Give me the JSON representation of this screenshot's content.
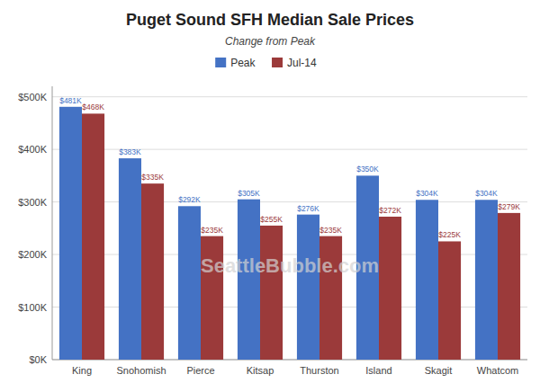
{
  "chart_data": {
    "type": "bar",
    "title": "Puget Sound SFH Median Sale Prices",
    "subtitle": "Change from Peak",
    "categories": [
      "King",
      "Snohomish",
      "Pierce",
      "Kitsap",
      "Thurston",
      "Island",
      "Skagit",
      "Whatcom"
    ],
    "series": [
      {
        "name": "Peak",
        "color": "#4472C4",
        "values": [
          481000,
          383000,
          292000,
          305000,
          276000,
          350000,
          304000,
          304000
        ],
        "value_labels": [
          "$481K",
          "$383K",
          "$292K",
          "$305K",
          "$276K",
          "$350K",
          "$304K",
          "$304K"
        ]
      },
      {
        "name": "Jul-14",
        "color": "#9B3A3A",
        "values": [
          468000,
          335000,
          235000,
          255000,
          235000,
          272000,
          225000,
          279000
        ],
        "value_labels": [
          "$468K",
          "$335K",
          "$235K",
          "$255K",
          "$235K",
          "$272K",
          "$225K",
          "$279K"
        ]
      }
    ],
    "ylim": [
      0,
      520000
    ],
    "yticks": [
      {
        "value": 0,
        "label": "$0K"
      },
      {
        "value": 100000,
        "label": "$100K"
      },
      {
        "value": 200000,
        "label": "$200K"
      },
      {
        "value": 300000,
        "label": "$300K"
      },
      {
        "value": 400000,
        "label": "$400K"
      },
      {
        "value": 500000,
        "label": "$500K"
      }
    ],
    "grid": true,
    "legend": "top",
    "data_labels": true,
    "annotations": [
      "SeattleBubble.com"
    ]
  }
}
